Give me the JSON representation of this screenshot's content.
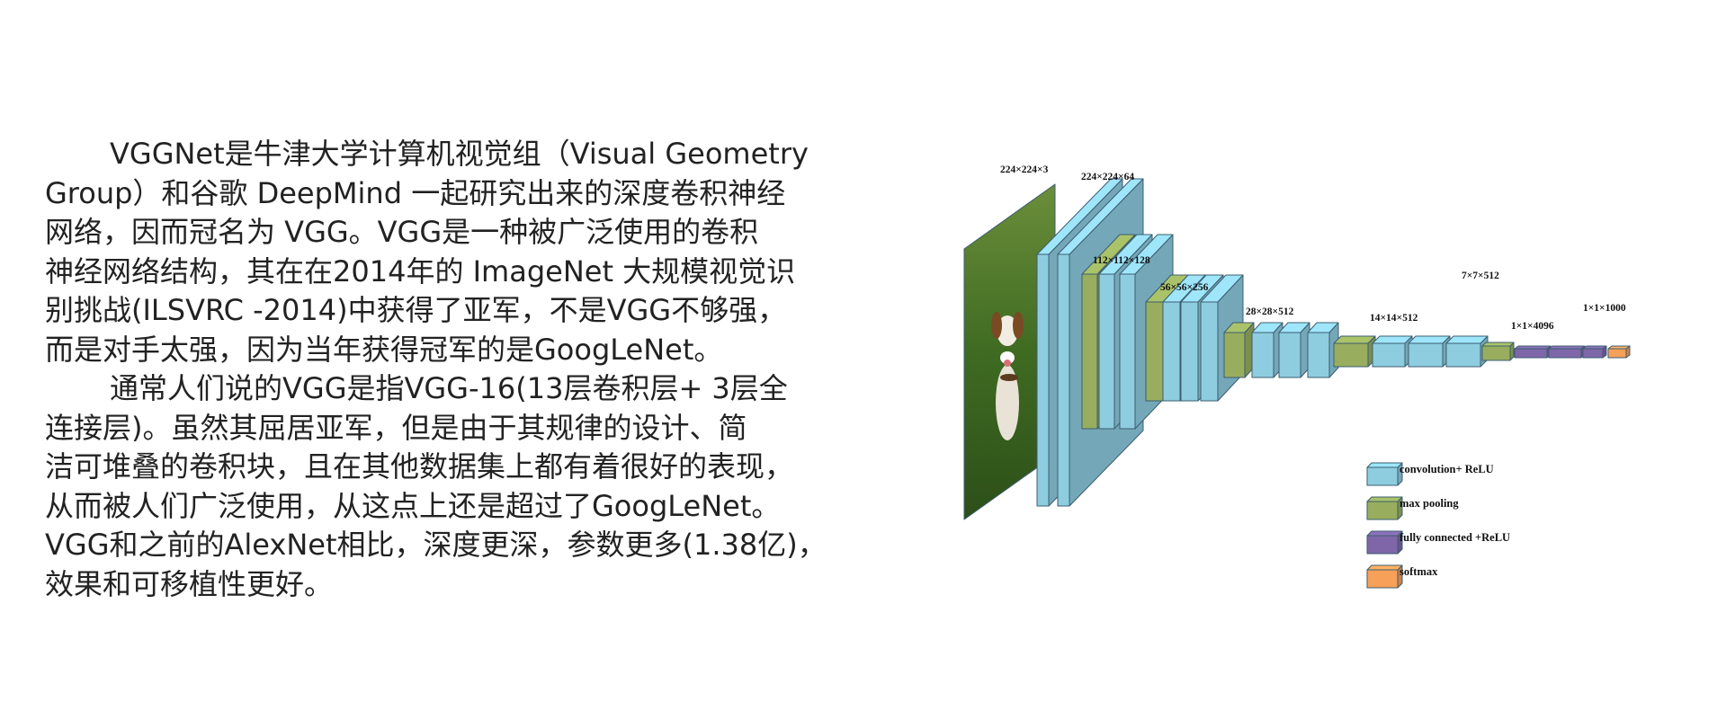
{
  "text_lines": [
    "VGGNet是牛津大学计算机视觉组（Visual Geometry",
    "Group）和谷歌 DeepMind 一起研究出来的深度卷积神经",
    "网络，因而冠名为 VGG。VGG是一种被广泛使用的卷积",
    "神经网络结构，其在在2014年的 ImageNet 大规模视觉识",
    "别挑战(ILSVRC -2014)中获得了亚军，不是VGG不够强，",
    "而是对手太强，因为当年获得冠军的是GoogLeNet。",
    "通常人们说的VGG是指VGG-16(13层卷积层+ 3层全",
    "连接层)。虽然其屈居亚军，但是由于其规律的设计、简",
    "洁可堆叠的卷积块，且在其他数据集上都有着很好的表现，",
    "从而被人们广泛使用，从这点上还是超过了GoogLeNet。",
    "VGG和之前的AlexNet相比，深度更深，参数更多(1.38亿)，",
    "效果和可移植性更好。"
  ],
  "diagram": {
    "labels": {
      "input": "224×224×3",
      "block1": "224×224×64",
      "block2": "112×112×128",
      "block3": "56×56×256",
      "block4": "28×28×512",
      "block5": "14×14×512",
      "pool5": "7×7×512",
      "fc": "1×1×4096",
      "softmax": "1×1×1000"
    },
    "legend": [
      {
        "label": "convolution+ ReLU",
        "color": "#8ecde0"
      },
      {
        "label": "max pooling",
        "color": "#98ae5e"
      },
      {
        "label": "fully connected +ReLU",
        "color": "#7e66a8"
      },
      {
        "label": "softmax",
        "color": "#f7a05a"
      }
    ],
    "colors": {
      "conv": "#8ecde0",
      "pool": "#98ae5e",
      "fc": "#7e66a8",
      "softmax": "#f7a05a",
      "edge": "#3c5d70"
    }
  }
}
